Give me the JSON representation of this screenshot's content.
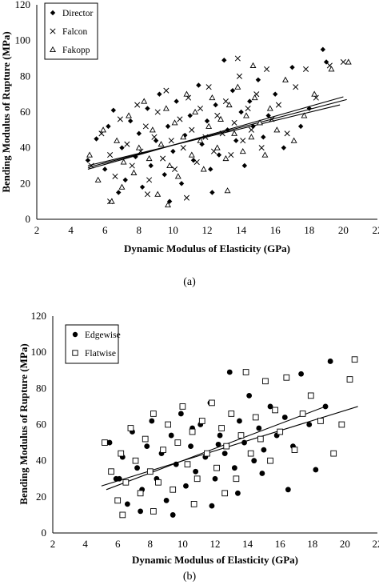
{
  "chart_data": [
    {
      "type": "scatter",
      "caption": "(a)",
      "xlabel": "Dynamic Modulus of Elasticity (GPa)",
      "ylabel": "Bending Modulus of Rupture (MPa)",
      "xlim": [
        2,
        22
      ],
      "ylim": [
        0,
        120
      ],
      "xticks": [
        2,
        4,
        6,
        8,
        10,
        12,
        14,
        16,
        18,
        20,
        22
      ],
      "yticks": [
        0,
        20,
        40,
        60,
        80,
        100,
        120
      ],
      "grid": false,
      "legend_position": "top-left",
      "series": [
        {
          "name": "Director",
          "marker": "diamond-filled",
          "color": "#000000",
          "fit": [
            [
              5.0,
              28.0
            ],
            [
              20.0,
              68.5
            ]
          ],
          "points": [
            [
              5.0,
              33
            ],
            [
              5.5,
              45
            ],
            [
              6.0,
              28
            ],
            [
              6.2,
              52
            ],
            [
              6.5,
              61
            ],
            [
              7.0,
              40
            ],
            [
              7.2,
              22
            ],
            [
              7.5,
              55
            ],
            [
              7.8,
              35
            ],
            [
              8.0,
              48
            ],
            [
              8.2,
              18
            ],
            [
              8.5,
              62
            ],
            [
              8.7,
              30
            ],
            [
              9.0,
              44
            ],
            [
              9.2,
              70
            ],
            [
              9.5,
              25
            ],
            [
              9.7,
              52
            ],
            [
              10.0,
              38
            ],
            [
              10.2,
              66
            ],
            [
              10.5,
              20
            ],
            [
              10.7,
              47
            ],
            [
              11.0,
              58
            ],
            [
              11.2,
              33
            ],
            [
              11.5,
              75
            ],
            [
              11.7,
              42
            ],
            [
              12.0,
              55
            ],
            [
              12.2,
              28
            ],
            [
              12.5,
              64
            ],
            [
              12.7,
              36
            ],
            [
              13.0,
              89
            ],
            [
              13.2,
              50
            ],
            [
              13.5,
              72
            ],
            [
              13.7,
              44
            ],
            [
              14.0,
              60
            ],
            [
              14.2,
              30
            ],
            [
              14.5,
              66
            ],
            [
              14.7,
              52
            ],
            [
              15.0,
              78
            ],
            [
              15.3,
              46
            ],
            [
              15.6,
              58
            ],
            [
              16.0,
              70
            ],
            [
              16.5,
              40
            ],
            [
              17.0,
              85
            ],
            [
              17.5,
              52
            ],
            [
              18.0,
              62
            ],
            [
              18.8,
              95
            ],
            [
              19.0,
              88
            ],
            [
              6.8,
              15
            ],
            [
              9.8,
              10
            ],
            [
              12.3,
              15
            ]
          ]
        },
        {
          "name": "Falcon",
          "marker": "x",
          "color": "#000000",
          "fit": [
            [
              5.0,
              29.0
            ],
            [
              20.2,
              67.0
            ]
          ],
          "points": [
            [
              5.2,
              30
            ],
            [
              5.8,
              48
            ],
            [
              6.3,
              36
            ],
            [
              6.6,
              24
            ],
            [
              6.9,
              56
            ],
            [
              7.3,
              42
            ],
            [
              7.6,
              30
            ],
            [
              7.9,
              64
            ],
            [
              8.1,
              38
            ],
            [
              8.4,
              52
            ],
            [
              8.6,
              22
            ],
            [
              8.9,
              46
            ],
            [
              9.1,
              60
            ],
            [
              9.4,
              34
            ],
            [
              9.6,
              72
            ],
            [
              9.9,
              44
            ],
            [
              10.1,
              28
            ],
            [
              10.4,
              56
            ],
            [
              10.6,
              40
            ],
            [
              10.9,
              68
            ],
            [
              11.1,
              50
            ],
            [
              11.4,
              32
            ],
            [
              11.6,
              62
            ],
            [
              11.9,
              46
            ],
            [
              12.1,
              74
            ],
            [
              12.4,
              38
            ],
            [
              12.6,
              58
            ],
            [
              12.9,
              48
            ],
            [
              13.1,
              66
            ],
            [
              13.4,
              36
            ],
            [
              13.6,
              54
            ],
            [
              13.9,
              80
            ],
            [
              14.1,
              44
            ],
            [
              14.4,
              62
            ],
            [
              14.6,
              50
            ],
            [
              14.9,
              70
            ],
            [
              15.2,
              40
            ],
            [
              15.5,
              84
            ],
            [
              15.8,
              56
            ],
            [
              16.2,
              64
            ],
            [
              16.7,
              48
            ],
            [
              17.2,
              74
            ],
            [
              17.8,
              84
            ],
            [
              18.4,
              68
            ],
            [
              19.2,
              86
            ],
            [
              20.0,
              88
            ],
            [
              6.3,
              10
            ],
            [
              8.5,
              14
            ],
            [
              10.8,
              12
            ],
            [
              13.8,
              90
            ]
          ]
        },
        {
          "name": "Fakopp",
          "marker": "triangle-open",
          "color": "#000000",
          "fit": [
            [
              5.0,
              30.0
            ],
            [
              19.8,
              64.0
            ]
          ],
          "points": [
            [
              5.1,
              36
            ],
            [
              5.6,
              22
            ],
            [
              5.9,
              50
            ],
            [
              6.4,
              10
            ],
            [
              6.7,
              44
            ],
            [
              7.1,
              32
            ],
            [
              7.4,
              58
            ],
            [
              7.7,
              26
            ],
            [
              8.0,
              40
            ],
            [
              8.3,
              66
            ],
            [
              8.6,
              34
            ],
            [
              8.8,
              50
            ],
            [
              9.1,
              14
            ],
            [
              9.3,
              42
            ],
            [
              9.6,
              62
            ],
            [
              9.8,
              30
            ],
            [
              10.1,
              54
            ],
            [
              10.3,
              24
            ],
            [
              10.6,
              46
            ],
            [
              10.8,
              70
            ],
            [
              11.1,
              36
            ],
            [
              11.3,
              60
            ],
            [
              11.6,
              44
            ],
            [
              11.8,
              28
            ],
            [
              12.1,
              52
            ],
            [
              12.3,
              68
            ],
            [
              12.6,
              40
            ],
            [
              12.8,
              56
            ],
            [
              13.1,
              34
            ],
            [
              13.3,
              64
            ],
            [
              13.6,
              48
            ],
            [
              13.8,
              74
            ],
            [
              14.1,
              38
            ],
            [
              14.3,
              58
            ],
            [
              14.6,
              46
            ],
            [
              14.8,
              68
            ],
            [
              15.1,
              54
            ],
            [
              15.4,
              36
            ],
            [
              15.7,
              62
            ],
            [
              16.1,
              50
            ],
            [
              16.6,
              78
            ],
            [
              17.1,
              44
            ],
            [
              17.7,
              58
            ],
            [
              18.3,
              70
            ],
            [
              19.3,
              84
            ],
            [
              20.3,
              88
            ],
            [
              7.0,
              18
            ],
            [
              9.7,
              8
            ],
            [
              13.2,
              16
            ],
            [
              14.7,
              86
            ]
          ]
        }
      ]
    },
    {
      "type": "scatter",
      "caption": "(b)",
      "xlabel": "Dynamic Modulus of Elasticity (GPa)",
      "ylabel": "Bending Modulus of Rupture (MPa)",
      "xlim": [
        2,
        22
      ],
      "ylim": [
        0,
        120
      ],
      "xticks": [
        2,
        4,
        6,
        8,
        10,
        12,
        14,
        16,
        18,
        20,
        22
      ],
      "yticks": [
        0,
        20,
        40,
        60,
        80,
        100,
        120
      ],
      "grid": false,
      "legend_position": "top-left",
      "series": [
        {
          "name": "Edgewise",
          "marker": "circle-filled",
          "color": "#000000",
          "fit": [
            [
              5.3,
              24.0
            ],
            [
              18.8,
              70.0
            ]
          ],
          "points": [
            [
              5.5,
              50
            ],
            [
              5.9,
              30
            ],
            [
              6.3,
              42
            ],
            [
              6.6,
              16
            ],
            [
              6.9,
              56
            ],
            [
              7.2,
              36
            ],
            [
              7.5,
              24
            ],
            [
              7.8,
              48
            ],
            [
              8.1,
              62
            ],
            [
              8.4,
              30
            ],
            [
              8.7,
              44
            ],
            [
              9.0,
              18
            ],
            [
              9.3,
              54
            ],
            [
              9.6,
              38
            ],
            [
              9.9,
              66
            ],
            [
              10.2,
              26
            ],
            [
              10.5,
              48
            ],
            [
              10.8,
              34
            ],
            [
              11.1,
              60
            ],
            [
              11.4,
              42
            ],
            [
              11.7,
              72
            ],
            [
              12.0,
              30
            ],
            [
              12.3,
              54
            ],
            [
              12.6,
              44
            ],
            [
              12.9,
              89
            ],
            [
              13.2,
              36
            ],
            [
              13.5,
              62
            ],
            [
              13.8,
              50
            ],
            [
              14.1,
              76
            ],
            [
              14.4,
              40
            ],
            [
              14.7,
              58
            ],
            [
              15.0,
              46
            ],
            [
              15.4,
              70
            ],
            [
              15.8,
              54
            ],
            [
              16.3,
              64
            ],
            [
              16.8,
              48
            ],
            [
              17.3,
              88
            ],
            [
              17.8,
              60
            ],
            [
              18.2,
              35
            ],
            [
              18.8,
              70
            ],
            [
              19.1,
              95
            ],
            [
              16.5,
              24
            ],
            [
              7.4,
              12
            ],
            [
              9.4,
              10
            ],
            [
              11.8,
              15
            ],
            [
              13.4,
              22
            ],
            [
              6.1,
              30
            ],
            [
              10.6,
              58
            ],
            [
              12.2,
              49
            ],
            [
              14.9,
              33
            ]
          ]
        },
        {
          "name": "Flatwise",
          "marker": "square-open",
          "color": "#000000",
          "fit": [
            [
              5.0,
              26.0
            ],
            [
              20.8,
              70.0
            ]
          ],
          "points": [
            [
              5.2,
              50
            ],
            [
              5.6,
              34
            ],
            [
              6.0,
              18
            ],
            [
              6.2,
              44
            ],
            [
              6.5,
              28
            ],
            [
              6.8,
              58
            ],
            [
              7.1,
              40
            ],
            [
              7.4,
              22
            ],
            [
              7.7,
              52
            ],
            [
              8.0,
              34
            ],
            [
              8.2,
              66
            ],
            [
              8.5,
              28
            ],
            [
              8.8,
              46
            ],
            [
              9.1,
              60
            ],
            [
              9.4,
              24
            ],
            [
              9.7,
              50
            ],
            [
              10.0,
              70
            ],
            [
              10.3,
              38
            ],
            [
              10.6,
              56
            ],
            [
              10.9,
              30
            ],
            [
              11.2,
              62
            ],
            [
              11.5,
              44
            ],
            [
              11.8,
              72
            ],
            [
              12.1,
              36
            ],
            [
              12.4,
              58
            ],
            [
              12.7,
              48
            ],
            [
              13.0,
              66
            ],
            [
              13.3,
              30
            ],
            [
              13.6,
              54
            ],
            [
              13.9,
              89
            ],
            [
              14.2,
              44
            ],
            [
              14.5,
              64
            ],
            [
              14.8,
              52
            ],
            [
              15.1,
              84
            ],
            [
              15.4,
              40
            ],
            [
              15.7,
              68
            ],
            [
              16.0,
              56
            ],
            [
              16.4,
              86
            ],
            [
              16.9,
              46
            ],
            [
              17.4,
              66
            ],
            [
              17.9,
              76
            ],
            [
              18.5,
              62
            ],
            [
              19.3,
              44
            ],
            [
              19.8,
              60
            ],
            [
              20.3,
              85
            ],
            [
              20.6,
              96
            ],
            [
              6.3,
              10
            ],
            [
              8.2,
              12
            ],
            [
              10.7,
              16
            ],
            [
              12.6,
              22
            ]
          ]
        }
      ]
    }
  ]
}
